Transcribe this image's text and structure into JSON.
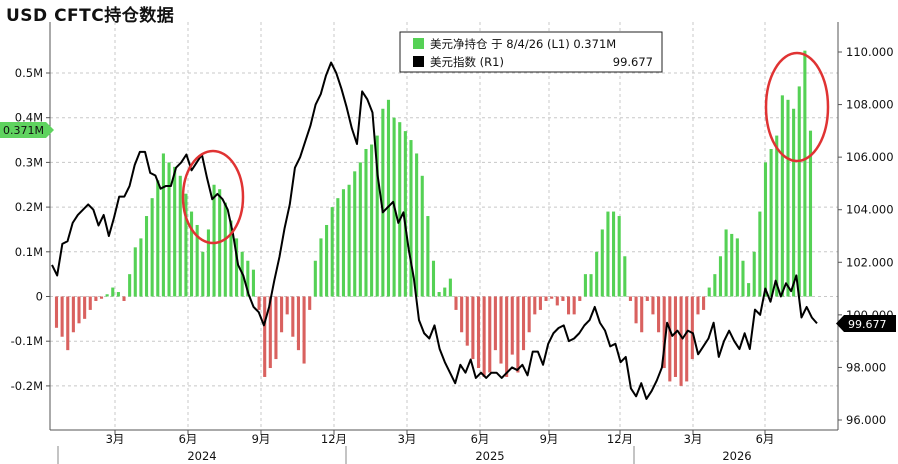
{
  "title": "USD CFTC持仓数据",
  "legend": {
    "series1_label": "美元净持仓 于 8/4/26 (L1) 0.371M",
    "series2_label": "美元指数 (R1)",
    "series2_value": "99.677"
  },
  "flags": {
    "left_value": "0.371M",
    "right_value": "99.677"
  },
  "colors": {
    "positive_bar": "#55d155",
    "negative_bar": "#d9615f",
    "line": "#000000",
    "circle": "#e03333",
    "flag_left": "#5fd35f",
    "flag_right": "#000000"
  },
  "chart_data": {
    "type": "bar+line",
    "left_axis": {
      "ticks": [
        0.5,
        0.4,
        0.3,
        0.2,
        0.1,
        0,
        -0.1,
        -0.2
      ],
      "tick_labels": [
        "0.5M",
        "0.4M",
        "0.3M",
        "0.2M",
        "0.1M",
        "0",
        "-0.1M",
        "-0.2M"
      ],
      "range": [
        -0.3,
        0.6
      ]
    },
    "right_axis": {
      "ticks": [
        110,
        108,
        106,
        104,
        102,
        100,
        98,
        96
      ],
      "tick_labels": [
        "110.000",
        "108.000",
        "106.000",
        "104.000",
        "102.000",
        "100.000",
        "98.000",
        "96.000"
      ],
      "range": [
        95.5,
        111.0
      ]
    },
    "x_axis": {
      "month_labels": [
        "3月",
        "6月",
        "9月",
        "12月",
        "3月",
        "6月",
        "9月",
        "12月",
        "3月",
        "6月"
      ],
      "year_labels": [
        "2024",
        "2025",
        "2026"
      ]
    },
    "series": [
      {
        "name": "美元净持仓 (L1)",
        "unit": "M",
        "values": [
          -0.07,
          -0.09,
          -0.12,
          -0.08,
          -0.06,
          -0.05,
          -0.03,
          -0.01,
          -0.005,
          0.005,
          0.02,
          0.01,
          -0.01,
          0.05,
          0.11,
          0.13,
          0.18,
          0.22,
          0.26,
          0.32,
          0.3,
          0.29,
          0.27,
          0.23,
          0.19,
          0.16,
          0.1,
          0.15,
          0.25,
          0.24,
          0.21,
          0.17,
          0.13,
          0.1,
          0.08,
          0.06,
          -0.03,
          -0.18,
          -0.16,
          -0.14,
          -0.08,
          -0.04,
          -0.09,
          -0.12,
          -0.15,
          -0.03,
          0.08,
          0.13,
          0.16,
          0.2,
          0.22,
          0.24,
          0.25,
          0.28,
          0.3,
          0.33,
          0.34,
          0.36,
          0.42,
          0.44,
          0.4,
          0.39,
          0.37,
          0.35,
          0.32,
          0.27,
          0.18,
          0.08,
          0.01,
          0.02,
          0.04,
          -0.03,
          -0.08,
          -0.11,
          -0.14,
          -0.16,
          -0.18,
          -0.17,
          -0.12,
          -0.15,
          -0.18,
          -0.13,
          -0.17,
          -0.12,
          -0.08,
          -0.04,
          -0.03,
          -0.01,
          -0.005,
          -0.02,
          -0.01,
          -0.04,
          -0.04,
          -0.01,
          0.05,
          0.05,
          0.1,
          0.15,
          0.19,
          0.19,
          0.18,
          0.09,
          -0.01,
          -0.06,
          -0.08,
          -0.01,
          -0.04,
          -0.08,
          -0.16,
          -0.19,
          -0.18,
          -0.2,
          -0.19,
          -0.14,
          -0.04,
          -0.03,
          0.02,
          0.05,
          0.09,
          0.15,
          0.14,
          0.13,
          0.08,
          0.03,
          0.1,
          0.19,
          0.3,
          0.33,
          0.36,
          0.45,
          0.44,
          0.42,
          0.47,
          0.55,
          0.371
        ]
      },
      {
        "name": "美元指数 (R1)",
        "values": [
          101.9,
          101.5,
          102.7,
          102.8,
          103.5,
          103.8,
          104.0,
          104.2,
          104.0,
          103.4,
          103.8,
          103.0,
          103.7,
          104.5,
          104.5,
          104.9,
          105.7,
          106.2,
          106.2,
          105.4,
          105.3,
          104.8,
          104.9,
          104.9,
          105.6,
          105.8,
          106.1,
          105.5,
          105.8,
          106.1,
          105.2,
          104.4,
          104.6,
          104.4,
          104.0,
          103.1,
          101.9,
          101.5,
          100.8,
          100.3,
          100.1,
          99.6,
          100.3,
          101.3,
          102.2,
          103.3,
          104.2,
          105.6,
          106.0,
          106.6,
          107.2,
          108.0,
          108.4,
          109.1,
          109.6,
          109.2,
          108.6,
          107.9,
          107.1,
          106.5,
          108.5,
          108.2,
          107.7,
          105.3,
          103.9,
          104.1,
          104.3,
          103.5,
          103.9,
          102.5,
          101.4,
          99.8,
          99.3,
          99.1,
          99.6,
          98.7,
          98.2,
          97.8,
          97.4,
          98.1,
          97.8,
          98.3,
          97.6,
          97.8,
          97.6,
          97.8,
          97.8,
          97.6,
          97.8,
          98.0,
          97.9,
          98.1,
          97.7,
          98.6,
          98.6,
          98.1,
          98.9,
          99.3,
          99.5,
          99.6,
          99.0,
          99.1,
          99.3,
          99.6,
          99.8,
          100.3,
          99.7,
          99.4,
          98.8,
          98.9,
          98.2,
          98.4,
          97.2,
          96.9,
          97.4,
          96.8,
          97.1,
          97.5,
          98.0,
          99.7,
          99.2,
          99.4,
          99.1,
          99.4,
          99.3,
          98.5,
          98.8,
          99.1,
          99.7,
          98.4,
          99.0,
          99.4,
          99.0,
          98.7,
          99.3,
          98.7,
          100.2,
          100.0,
          101.0,
          100.5,
          101.3,
          100.7,
          101.2,
          100.9,
          101.5,
          99.9,
          100.3,
          99.9,
          99.677
        ]
      }
    ]
  }
}
